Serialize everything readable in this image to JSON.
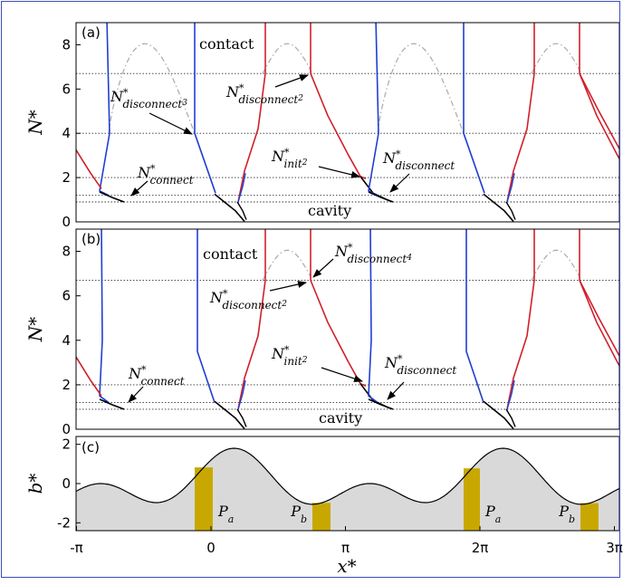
{
  "chart_data": [
    {
      "panel": "(a)",
      "type": "line",
      "ylabel": "N*",
      "ylim": [
        0,
        9
      ],
      "yticks": [
        "0",
        "2",
        "4",
        "6",
        "8"
      ],
      "reference_levels": [
        0.9,
        1.2,
        2,
        4,
        6.7
      ],
      "region_labels": {
        "top": "contact",
        "bottom": "cavity"
      },
      "annotations": [
        {
          "main": "N",
          "sub": "disconnect",
          "subsub": "3"
        },
        {
          "main": "N",
          "sub": "disconnect",
          "subsub": "2"
        },
        {
          "main": "N",
          "sub": "connect",
          "subsub": ""
        },
        {
          "main": "N",
          "sub": "init",
          "subsub": "2"
        },
        {
          "main": "N",
          "sub": "disconnect",
          "subsub": ""
        }
      ],
      "colors": {
        "blue": "#1f3fd0",
        "red": "#d0202a",
        "black": "#000000",
        "gray": "#aaaaaa"
      }
    },
    {
      "panel": "(b)",
      "type": "line",
      "ylabel": "N*",
      "ylim": [
        0,
        9
      ],
      "yticks": [
        "0",
        "2",
        "4",
        "6",
        "8"
      ],
      "reference_levels": [
        0.9,
        1.2,
        2,
        6.7
      ],
      "region_labels": {
        "top": "contact",
        "bottom": "cavity"
      },
      "annotations": [
        {
          "main": "N",
          "sub": "disconnect",
          "subsub": "4"
        },
        {
          "main": "N",
          "sub": "disconnect",
          "subsub": "2"
        },
        {
          "main": "N",
          "sub": "connect",
          "subsub": ""
        },
        {
          "main": "N",
          "sub": "init",
          "subsub": "2"
        },
        {
          "main": "N",
          "sub": "disconnect",
          "subsub": ""
        }
      ]
    },
    {
      "panel": "(c)",
      "type": "area",
      "ylabel": "b*",
      "xlabel": "x*",
      "ylim": [
        -2.4,
        2.4
      ],
      "yticks": [
        "-2",
        "0",
        "2"
      ],
      "xticks": [
        "-π",
        "0",
        "π",
        "2π",
        "3π"
      ],
      "regions": [
        {
          "label": "P",
          "sub": "a"
        },
        {
          "label": "P",
          "sub": "b"
        },
        {
          "label": "P",
          "sub": "a"
        },
        {
          "label": "P",
          "sub": "b"
        }
      ],
      "colors": {
        "fill": "#d9d9d9",
        "pad": "#c8a800"
      }
    }
  ]
}
